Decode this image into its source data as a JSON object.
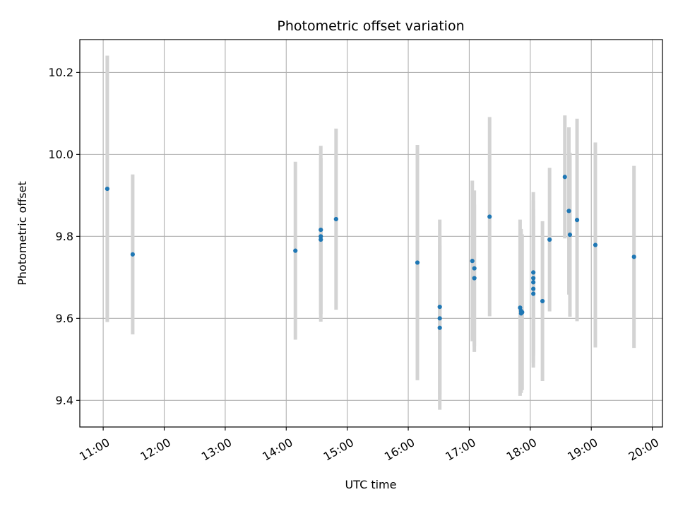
{
  "chart_data": {
    "type": "scatter",
    "title": "Photometric offset variation",
    "xlabel": "UTC time",
    "ylabel": "Photometric offset",
    "x_ticks": [
      "11:00",
      "12:00",
      "13:00",
      "14:00",
      "15:00",
      "16:00",
      "17:00",
      "18:00",
      "19:00",
      "20:00"
    ],
    "y_ticks": [
      "9.4",
      "9.6",
      "9.8",
      "10.0",
      "10.2"
    ],
    "xlim": [
      "10:37",
      "20:10"
    ],
    "ylim": [
      9.335,
      10.28
    ],
    "grid": true,
    "colors": {
      "point": "#1f77b4",
      "errorbar": "#d3d3d3",
      "grid": "#b0b0b0"
    },
    "series": [
      {
        "points": [
          {
            "x": "11:04",
            "y": 9.916,
            "err": 0.325
          },
          {
            "x": "11:29",
            "y": 9.756,
            "err": 0.195
          },
          {
            "x": "14:09",
            "y": 9.765,
            "err": 0.217
          },
          {
            "x": "14:34",
            "y": 9.816,
            "err": 0.205
          },
          {
            "x": "14:34",
            "y": 9.792,
            "err": 0.2
          },
          {
            "x": "14:34",
            "y": 9.8,
            "err": 0.19
          },
          {
            "x": "14:49",
            "y": 9.842,
            "err": 0.221
          },
          {
            "x": "16:09",
            "y": 9.736,
            "err": 0.287
          },
          {
            "x": "16:31",
            "y": 9.628,
            "err": 0.213
          },
          {
            "x": "16:31",
            "y": 9.6,
            "err": 0.2
          },
          {
            "x": "16:31",
            "y": 9.577,
            "err": 0.2
          },
          {
            "x": "17:03",
            "y": 9.74,
            "err": 0.196
          },
          {
            "x": "17:05",
            "y": 9.722,
            "err": 0.19
          },
          {
            "x": "17:05",
            "y": 9.698,
            "err": 0.18
          },
          {
            "x": "17:20",
            "y": 9.848,
            "err": 0.243
          },
          {
            "x": "17:50",
            "y": 9.626,
            "err": 0.215
          },
          {
            "x": "17:51",
            "y": 9.618,
            "err": 0.2
          },
          {
            "x": "17:51",
            "y": 9.612,
            "err": 0.19
          },
          {
            "x": "17:52",
            "y": 9.615,
            "err": 0.19
          },
          {
            "x": "18:03",
            "y": 9.712,
            "err": 0.196
          },
          {
            "x": "18:03",
            "y": 9.698,
            "err": 0.19
          },
          {
            "x": "18:03",
            "y": 9.688,
            "err": 0.18
          },
          {
            "x": "18:03",
            "y": 9.672,
            "err": 0.18
          },
          {
            "x": "18:03",
            "y": 9.66,
            "err": 0.18
          },
          {
            "x": "18:12",
            "y": 9.642,
            "err": 0.195
          },
          {
            "x": "18:19",
            "y": 9.792,
            "err": 0.175
          },
          {
            "x": "18:34",
            "y": 9.945,
            "err": 0.15
          },
          {
            "x": "18:38",
            "y": 9.862,
            "err": 0.204
          },
          {
            "x": "18:39",
            "y": 9.804,
            "err": 0.2
          },
          {
            "x": "18:46",
            "y": 9.84,
            "err": 0.247
          },
          {
            "x": "19:04",
            "y": 9.779,
            "err": 0.25
          },
          {
            "x": "19:42",
            "y": 9.75,
            "err": 0.222
          }
        ]
      }
    ]
  }
}
